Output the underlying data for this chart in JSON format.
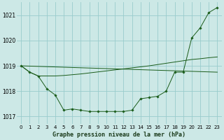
{
  "background_color": "#cce8e6",
  "grid_color": "#99cccc",
  "line_color": "#1a5c1a",
  "title": "Graphe pression niveau de la mer (hPa)",
  "ylim": [
    1016.7,
    1021.5
  ],
  "xlim": [
    -0.5,
    23.5
  ],
  "yticks": [
    1017,
    1018,
    1019,
    1020,
    1021
  ],
  "xticks": [
    0,
    1,
    2,
    3,
    4,
    5,
    6,
    7,
    8,
    9,
    10,
    11,
    12,
    13,
    14,
    15,
    16,
    17,
    18,
    19,
    20,
    21,
    22,
    23
  ],
  "series1_x": [
    0,
    1,
    2,
    3,
    4,
    5,
    6,
    7,
    8,
    9,
    10,
    11,
    12,
    13,
    14,
    15,
    16,
    17,
    18,
    19,
    20,
    21,
    22,
    23
  ],
  "series1_y": [
    1019.0,
    1018.75,
    1018.6,
    1018.1,
    1017.85,
    1017.25,
    1017.3,
    1017.25,
    1017.2,
    1017.2,
    1017.2,
    1017.2,
    1017.2,
    1017.25,
    1017.7,
    1017.75,
    1017.8,
    1018.0,
    1018.75,
    1018.75,
    1020.1,
    1020.5,
    1021.1,
    1021.3
  ],
  "series2_x": [
    0,
    1,
    2,
    3,
    4,
    5,
    6,
    7,
    8,
    9,
    10,
    11,
    12,
    13,
    14,
    15,
    16,
    17,
    18,
    19,
    20,
    21,
    22,
    23
  ],
  "series2_y": [
    1019.0,
    1018.75,
    1018.6,
    1018.6,
    1018.6,
    1018.62,
    1018.65,
    1018.68,
    1018.72,
    1018.76,
    1018.8,
    1018.84,
    1018.88,
    1018.92,
    1018.96,
    1019.0,
    1019.05,
    1019.1,
    1019.15,
    1019.2,
    1019.25,
    1019.28,
    1019.32,
    1019.35
  ],
  "series3_x": [
    0,
    23
  ],
  "series3_y": [
    1019.0,
    1018.75
  ],
  "figsize": [
    3.2,
    2.0
  ],
  "dpi": 100
}
